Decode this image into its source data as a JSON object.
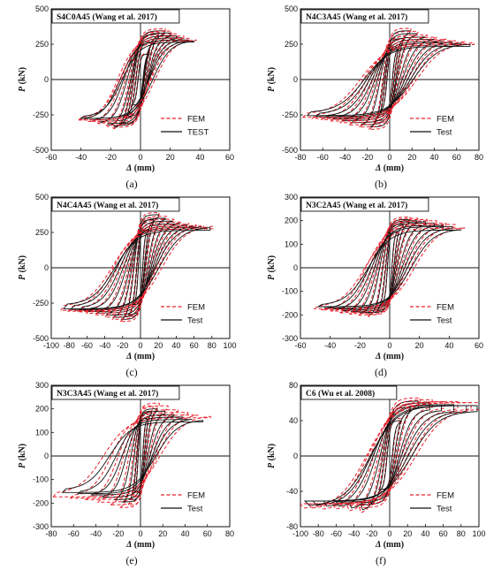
{
  "colors": {
    "fem": "#e8202a",
    "test": "#111111",
    "axis": "#111111"
  },
  "chart_data": [
    {
      "type": "line",
      "caption": "(a)",
      "title": "S4C0A45 (Wang et al. 2017)",
      "xlabel_sym": "Δ",
      "xlabel_unit": " (mm)",
      "ylabel_sym": "P",
      "ylabel_unit": " (kN)",
      "xlim": [
        -60,
        60
      ],
      "ylim": [
        -500,
        500
      ],
      "xticks": [
        -60,
        -40,
        -20,
        0,
        20,
        40,
        60
      ],
      "yticks": [
        -500,
        -250,
        0,
        250,
        500
      ],
      "legend": [
        "FEM",
        "TEST"
      ],
      "legend_position": "lower-right",
      "peaks": [
        [
          6,
          180
        ],
        [
          9,
          260
        ],
        [
          12,
          320
        ],
        [
          16,
          345
        ],
        [
          20,
          330
        ],
        [
          24,
          310
        ],
        [
          28,
          295
        ],
        [
          32,
          280
        ],
        [
          36,
          265
        ]
      ],
      "npeaks": [
        [
          -6,
          -180
        ],
        [
          -10,
          -260
        ],
        [
          -14,
          -310
        ],
        [
          -18,
          -325
        ],
        [
          -22,
          -310
        ],
        [
          -28,
          -295
        ],
        [
          -34,
          -285
        ],
        [
          -40,
          -275
        ]
      ],
      "resid": 0.45,
      "test_scale": 1.0,
      "fem_scale": 1.04
    },
    {
      "type": "line",
      "caption": "(b)",
      "title": "N4C3A45 (Wang et al. 2017)",
      "xlabel_sym": "Δ",
      "xlabel_unit": " (mm)",
      "ylabel_sym": "P",
      "ylabel_unit": " (kN)",
      "xlim": [
        -80,
        80
      ],
      "ylim": [
        -500,
        500
      ],
      "xticks": [
        -80,
        -60,
        -40,
        -20,
        0,
        20,
        40,
        60,
        80
      ],
      "yticks": [
        -500,
        -250,
        0,
        250,
        500
      ],
      "legend": [
        "FEM",
        "Test"
      ],
      "legend_position": "lower-right",
      "peaks": [
        [
          8,
          220
        ],
        [
          13,
          290
        ],
        [
          18,
          345
        ],
        [
          24,
          325
        ],
        [
          32,
          300
        ],
        [
          40,
          285
        ],
        [
          48,
          270
        ],
        [
          56,
          260
        ],
        [
          64,
          245
        ],
        [
          72,
          235
        ]
      ],
      "npeaks": [
        [
          -8,
          -220
        ],
        [
          -13,
          -290
        ],
        [
          -18,
          -335
        ],
        [
          -26,
          -320
        ],
        [
          -34,
          -305
        ],
        [
          -42,
          -290
        ],
        [
          -50,
          -280
        ],
        [
          -58,
          -270
        ],
        [
          -66,
          -262
        ],
        [
          -74,
          -255
        ]
      ],
      "resid": 0.5,
      "test_scale": 1.0,
      "fem_scale": 1.05
    },
    {
      "type": "line",
      "caption": "(c)",
      "title": "N4C4A45 (Wang et al. 2017)",
      "xlabel_sym": "Δ",
      "xlabel_unit": " (mm)",
      "ylabel_sym": "P",
      "ylabel_unit": " (kN)",
      "xlim": [
        -100,
        100
      ],
      "ylim": [
        -500,
        500
      ],
      "xticks": [
        -100,
        -80,
        -60,
        -40,
        -20,
        0,
        20,
        40,
        60,
        80,
        100
      ],
      "yticks": [
        -500,
        -250,
        0,
        250,
        500
      ],
      "legend": [
        "FEM",
        "Test"
      ],
      "legend_position": "lower-right",
      "peaks": [
        [
          8,
          260
        ],
        [
          14,
          340
        ],
        [
          20,
          375
        ],
        [
          28,
          350
        ],
        [
          36,
          330
        ],
        [
          44,
          310
        ],
        [
          52,
          295
        ],
        [
          60,
          285
        ],
        [
          68,
          275
        ],
        [
          78,
          265
        ]
      ],
      "npeaks": [
        [
          -8,
          -260
        ],
        [
          -14,
          -330
        ],
        [
          -22,
          -365
        ],
        [
          -30,
          -350
        ],
        [
          -38,
          -335
        ],
        [
          -48,
          -320
        ],
        [
          -58,
          -310
        ],
        [
          -68,
          -300
        ],
        [
          -78,
          -295
        ],
        [
          -86,
          -290
        ]
      ],
      "resid": 0.5,
      "test_scale": 1.0,
      "fem_scale": 1.04
    },
    {
      "type": "line",
      "caption": "(d)",
      "title": "N3C2A45 (Wang et al. 2017)",
      "xlabel_sym": "Δ",
      "xlabel_unit": " (mm)",
      "ylabel_sym": "P",
      "ylabel_unit": " (kN)",
      "xlim": [
        -60,
        60
      ],
      "ylim": [
        -300,
        300
      ],
      "xticks": [
        -60,
        -40,
        -20,
        0,
        20,
        40,
        60
      ],
      "yticks": [
        -300,
        -200,
        -100,
        0,
        100,
        200,
        300
      ],
      "legend": [
        "FEM",
        "Test"
      ],
      "legend_position": "lower-right",
      "peaks": [
        [
          5,
          150
        ],
        [
          9,
          185
        ],
        [
          13,
          205
        ],
        [
          18,
          200
        ],
        [
          24,
          195
        ],
        [
          30,
          190
        ],
        [
          36,
          180
        ],
        [
          42,
          175
        ],
        [
          48,
          160
        ]
      ],
      "npeaks": [
        [
          -5,
          -150
        ],
        [
          -9,
          -180
        ],
        [
          -14,
          -190
        ],
        [
          -20,
          -190
        ],
        [
          -26,
          -185
        ],
        [
          -32,
          -180
        ],
        [
          -38,
          -175
        ],
        [
          -44,
          -170
        ],
        [
          -48,
          -165
        ]
      ],
      "resid": 0.5,
      "test_scale": 1.0,
      "fem_scale": 1.05
    },
    {
      "type": "line",
      "caption": "(e)",
      "title": "N3C3A45 (Wang et al. 2017)",
      "xlabel_sym": "Δ",
      "xlabel_unit": " (mm)",
      "ylabel_sym": "P",
      "ylabel_unit": " (kN)",
      "xlim": [
        -80,
        80
      ],
      "ylim": [
        -300,
        300
      ],
      "xticks": [
        -80,
        -60,
        -40,
        -20,
        0,
        20,
        40,
        60,
        80
      ],
      "yticks": [
        -300,
        -200,
        -100,
        0,
        100,
        200,
        300
      ],
      "legend": [
        "FEM",
        "Test"
      ],
      "legend_position": "lower-right",
      "peaks": [
        [
          6,
          160
        ],
        [
          10,
          190
        ],
        [
          15,
          200
        ],
        [
          22,
          190
        ],
        [
          30,
          175
        ],
        [
          38,
          165
        ],
        [
          46,
          155
        ],
        [
          56,
          145
        ]
      ],
      "npeaks": [
        [
          -6,
          -155
        ],
        [
          -10,
          -185
        ],
        [
          -16,
          -195
        ],
        [
          -24,
          -185
        ],
        [
          -34,
          -175
        ],
        [
          -44,
          -165
        ],
        [
          -56,
          -160
        ],
        [
          -70,
          -155
        ]
      ],
      "resid": 0.55,
      "test_scale": 1.0,
      "fem_scale": 1.12
    },
    {
      "type": "line",
      "caption": "(f)",
      "title": "C6 (Wu et al. 2008)",
      "xlabel_sym": "Δ",
      "xlabel_unit": " (mm)",
      "ylabel_sym": "P",
      "ylabel_unit": " (kN)",
      "xlim": [
        -100,
        100
      ],
      "ylim": [
        -80,
        80
      ],
      "xticks": [
        -100,
        -80,
        -60,
        -40,
        -20,
        0,
        20,
        40,
        60,
        80,
        100
      ],
      "yticks": [
        -80,
        -40,
        0,
        40,
        80
      ],
      "legend": [
        "FEM",
        "Test"
      ],
      "legend_position": "lower-right",
      "peaks": [
        [
          12,
          40
        ],
        [
          22,
          55
        ],
        [
          32,
          62
        ],
        [
          45,
          60
        ],
        [
          58,
          58
        ],
        [
          72,
          58
        ],
        [
          86,
          57
        ],
        [
          98,
          57
        ]
      ],
      "npeaks": [
        [
          -12,
          -38
        ],
        [
          -22,
          -50
        ],
        [
          -32,
          -55
        ],
        [
          -45,
          -53
        ],
        [
          -60,
          -52
        ],
        [
          -74,
          -51
        ],
        [
          -86,
          -51
        ],
        [
          -95,
          -51
        ]
      ],
      "resid": 0.4,
      "test_scale": 1.0,
      "fem_scale": 1.06
    }
  ]
}
